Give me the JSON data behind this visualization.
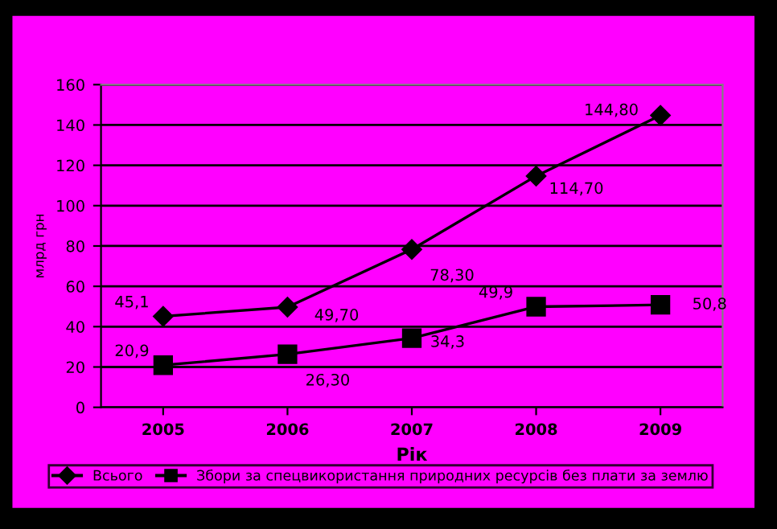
{
  "chart_data": {
    "type": "line",
    "xlabel": "Рік",
    "ylabel": "млрд грн",
    "categories": [
      "2005",
      "2006",
      "2007",
      "2008",
      "2009"
    ],
    "series": [
      {
        "name": "Всього",
        "color": "#000000",
        "marker": "diamond",
        "values": [
          45.1,
          49.7,
          78.3,
          114.7,
          144.8
        ],
        "value_labels": [
          "45,1",
          "49,70",
          "78,30",
          "114,70",
          "144,80"
        ]
      },
      {
        "name": "Збори за спецвикористання природних ресурсів без плати за землю",
        "color": "#000000",
        "marker": "square",
        "values": [
          20.9,
          26.3,
          34.3,
          49.9,
          50.8
        ],
        "value_labels": [
          "20,9",
          "26,30",
          "34,3",
          "49,9",
          "50,8"
        ]
      }
    ],
    "ylim": [
      0,
      160
    ],
    "yticks": [
      0,
      20,
      40,
      60,
      80,
      100,
      120,
      140,
      160
    ],
    "grid": "y",
    "legend": "bottom",
    "line_style": "solid"
  }
}
